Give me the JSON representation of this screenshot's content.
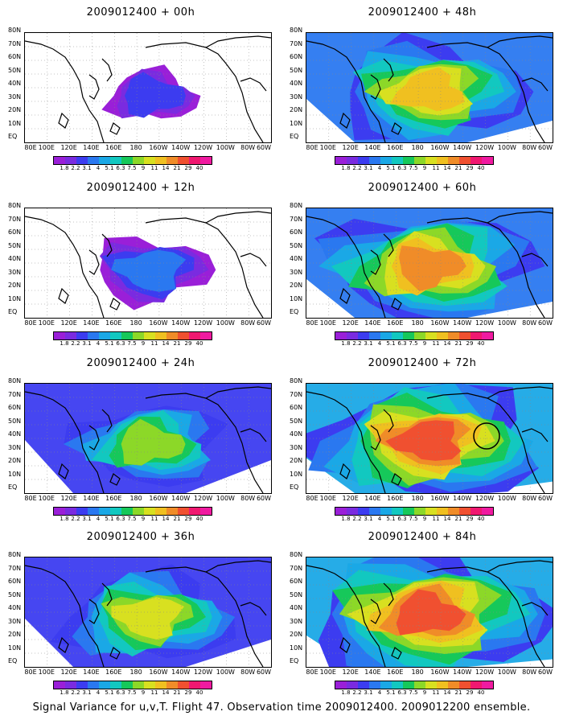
{
  "panels": [
    {
      "title": "2009012400 + 00h",
      "level": 0.2
    },
    {
      "title": "2009012400 + 48h",
      "level": 0.7
    },
    {
      "title": "2009012400 + 12h",
      "level": 0.35
    },
    {
      "title": "2009012400 + 60h",
      "level": 0.8
    },
    {
      "title": "2009012400 + 24h",
      "level": 0.5
    },
    {
      "title": "2009012400 + 72h",
      "level": 0.88,
      "circle": true
    },
    {
      "title": "2009012400 + 36h",
      "level": 0.6
    },
    {
      "title": "2009012400 + 84h",
      "level": 0.95
    }
  ],
  "lat_labels": [
    "80N",
    "70N",
    "60N",
    "50N",
    "40N",
    "30N",
    "20N",
    "10N",
    "EQ"
  ],
  "lon_labels": [
    "80E",
    "100E",
    "120E",
    "140E",
    "160E",
    "180",
    "160W",
    "140W",
    "120W",
    "100W",
    "80W",
    "60W"
  ],
  "colorbar": {
    "labels": [
      "1.8",
      "2.2",
      "3.1",
      "4",
      "5.1",
      "6.3",
      "7.5",
      "9",
      "11",
      "14",
      "21",
      "29",
      "40"
    ],
    "colors": [
      "#9a1fd8",
      "#7a2be0",
      "#3c3cf0",
      "#2a78f0",
      "#1aa8e6",
      "#12c8c0",
      "#16c85a",
      "#8cd828",
      "#d8e020",
      "#f0c020",
      "#f08c28",
      "#f05030",
      "#f01870",
      "#f01aa0"
    ]
  },
  "footer": "Signal Variance for u,v,T. Flight 47. Observation time 2009012400. 2009012200 ensemble."
}
